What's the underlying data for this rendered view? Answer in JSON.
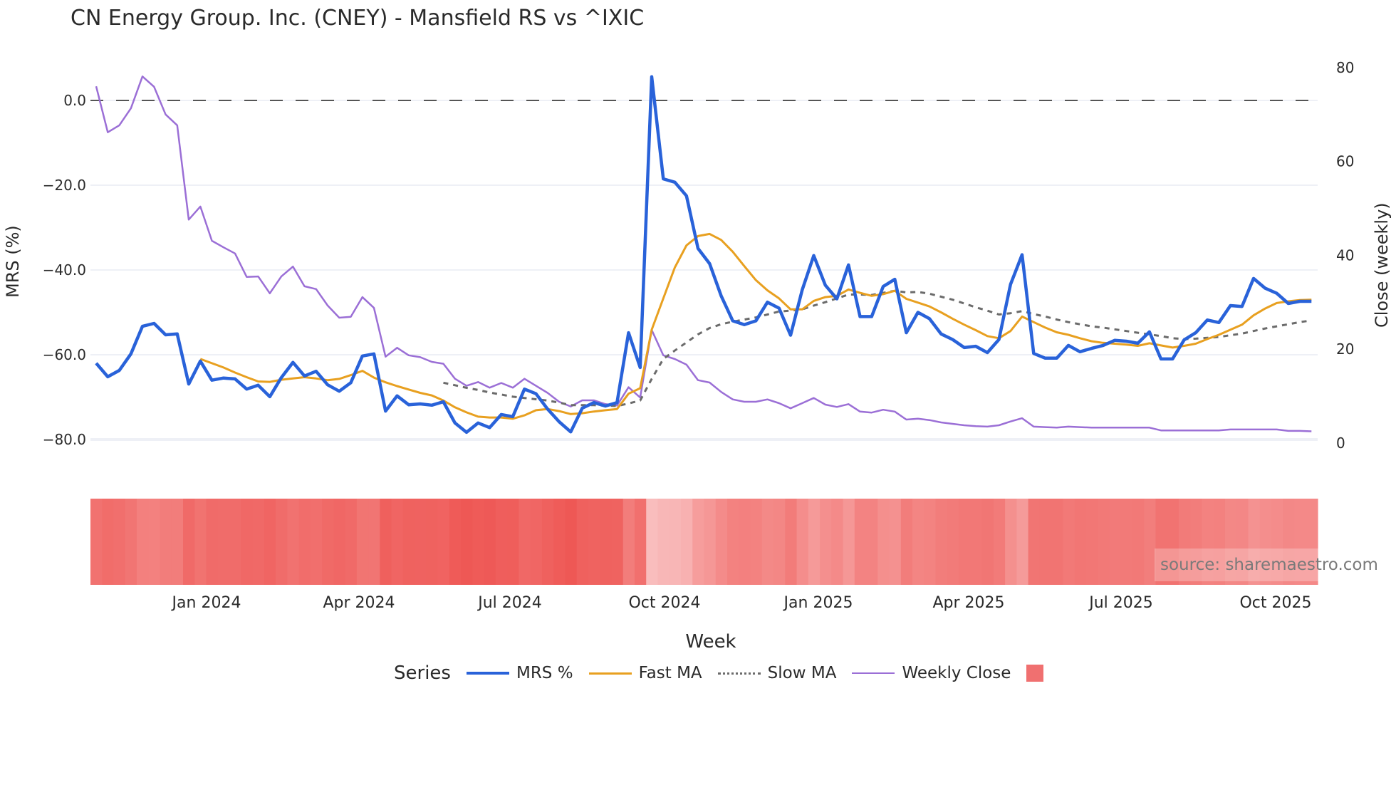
{
  "title": "CN Energy Group. Inc. (CNEY) - Mansfield RS vs ^IXIC",
  "source_label": "source: sharemaestro.com",
  "axes": {
    "y_left_title": "MRS (%)",
    "y_right_title": "Close (weekly)",
    "x_title": "Week",
    "y_left_ticks": [
      "0.0",
      "−20.0",
      "−40.0",
      "−60.0",
      "−80.0"
    ],
    "y_right_ticks": [
      "80",
      "60",
      "40",
      "20",
      "0"
    ],
    "x_ticks": [
      "Jan 2024",
      "Apr 2024",
      "Jul 2024",
      "Oct 2024",
      "Jan 2025",
      "Apr 2025",
      "Jul 2025",
      "Oct 2025"
    ]
  },
  "legend": {
    "title": "Series",
    "items": [
      {
        "label": "MRS %",
        "color": "#2962d9",
        "style": "solid"
      },
      {
        "label": "Fast MA",
        "color": "#e8a020",
        "style": "solid"
      },
      {
        "label": "Slow MA",
        "color": "#6b6b6b",
        "style": "dotted"
      },
      {
        "label": "Weekly Close",
        "color": "#9b6fd6",
        "style": "solid"
      },
      {
        "label": "",
        "color": "#f07070",
        "style": "box"
      }
    ]
  },
  "colors": {
    "mrs": "#2962d9",
    "fast_ma": "#e8a020",
    "slow_ma": "#6b6b6b",
    "close": "#9b6fd6",
    "zero_line": "#555555",
    "grid": "#eef0f6",
    "heat_low": "#ee5552",
    "heat_high": "#f9bdbd"
  },
  "chart_data": {
    "type": "line",
    "title": "CN Energy Group. Inc. (CNEY) - Mansfield RS vs ^IXIC",
    "xlabel": "Week",
    "ylabel": "MRS (%)",
    "y2label": "Close (weekly)",
    "ylim": [
      -81,
      6
    ],
    "y2lim": [
      0,
      80
    ],
    "x_range": [
      "Oct 2023",
      "Oct 2025"
    ],
    "x_tick_labels": [
      "Jan 2024",
      "Apr 2024",
      "Jul 2024",
      "Oct 2024",
      "Jan 2025",
      "Apr 2025",
      "Jul 2025",
      "Oct 2025"
    ],
    "grid": true,
    "legend_position": "bottom",
    "reference_line": {
      "y": 0,
      "style": "dashed"
    },
    "series": [
      {
        "name": "MRS %",
        "axis": "left",
        "start_index": 0,
        "values": [
          -62.0,
          -65.2,
          -63.7,
          -59.8,
          -53.3,
          -52.6,
          -55.3,
          -55.1,
          -66.9,
          -61.5,
          -66.0,
          -65.5,
          -65.7,
          -68.1,
          -67.2,
          -69.9,
          -65.4,
          -61.8,
          -65.0,
          -63.9,
          -67.1,
          -68.6,
          -66.6,
          -60.3,
          -59.8,
          -73.3,
          -69.7,
          -71.8,
          -71.6,
          -71.9,
          -71.1,
          -76.1,
          -78.3,
          -76.1,
          -77.2,
          -74.1,
          -74.6,
          -68.1,
          -69.2,
          -72.8,
          -75.8,
          -78.2,
          -72.6,
          -71.3,
          -72.1,
          -71.3,
          -54.8,
          -63.0,
          5.6,
          -18.5,
          -19.3,
          -22.5,
          -34.9,
          -38.5,
          -46.1,
          -52.0,
          -52.9,
          -52.0,
          -47.6,
          -49.0,
          -55.4,
          -44.7,
          -36.6,
          -43.6,
          -46.8,
          -38.8,
          -51.0,
          -51.0,
          -43.9,
          -42.2,
          -54.8,
          -50.0,
          -51.5,
          -55.1,
          -56.4,
          -58.3,
          -58.0,
          -59.5,
          -56.4,
          -43.4,
          -36.4,
          -59.7,
          -60.8,
          -60.8,
          -57.8,
          -59.3,
          -58.5,
          -57.8,
          -56.6,
          -56.8,
          -57.3,
          -54.6,
          -61.0,
          -61.0,
          -56.5,
          -54.8,
          -51.8,
          -52.4,
          -48.4,
          -48.6,
          -42.0,
          -44.3,
          -45.5,
          -47.9,
          -47.4,
          -47.4
        ]
      },
      {
        "name": "Fast MA",
        "axis": "left",
        "start_index": 9,
        "values": [
          -61.0,
          -62.0,
          -63.0,
          -64.2,
          -65.3,
          -66.3,
          -66.4,
          -65.9,
          -65.6,
          -65.3,
          -65.6,
          -66.0,
          -65.7,
          -64.8,
          -63.8,
          -65.4,
          -66.5,
          -67.4,
          -68.2,
          -69.0,
          -69.6,
          -70.8,
          -72.4,
          -73.6,
          -74.6,
          -74.8,
          -74.8,
          -75.1,
          -74.3,
          -73.1,
          -72.8,
          -73.3,
          -74.0,
          -73.8,
          -73.4,
          -73.1,
          -72.8,
          -69.2,
          -67.9,
          -54.1,
          -46.7,
          -39.4,
          -34.2,
          -32.0,
          -31.5,
          -32.9,
          -35.7,
          -39.1,
          -42.4,
          -44.8,
          -46.7,
          -49.3,
          -49.3,
          -47.3,
          -46.4,
          -46.1,
          -44.6,
          -45.4,
          -46.1,
          -45.7,
          -44.9,
          -46.8,
          -47.7,
          -48.6,
          -50.0,
          -51.5,
          -52.9,
          -54.2,
          -55.6,
          -56.1,
          -54.4,
          -51.0,
          -52.3,
          -53.6,
          -54.7,
          -55.3,
          -56.1,
          -56.8,
          -57.2,
          -57.4,
          -57.6,
          -57.9,
          -57.3,
          -57.8,
          -58.3,
          -57.9,
          -57.4,
          -56.3,
          -55.3,
          -54.1,
          -52.9,
          -50.7,
          -49.1,
          -47.8,
          -47.4,
          -47.1,
          -47.0
        ]
      },
      {
        "name": "Slow MA",
        "axis": "left",
        "start_index": 30,
        "values": [
          -66.6,
          -67.2,
          -67.8,
          -68.3,
          -68.9,
          -69.4,
          -69.9,
          -70.2,
          -70.5,
          -70.8,
          -71.3,
          -71.9,
          -71.9,
          -71.9,
          -72.0,
          -72.1,
          -71.5,
          -70.8,
          -65.7,
          -61.0,
          -59.0,
          -57.1,
          -55.2,
          -53.7,
          -52.8,
          -52.2,
          -51.7,
          -51.2,
          -50.5,
          -49.8,
          -49.6,
          -49.3,
          -48.4,
          -47.6,
          -46.7,
          -45.8,
          -45.8,
          -45.9,
          -45.4,
          -44.9,
          -45.3,
          -45.2,
          -45.6,
          -46.3,
          -47.0,
          -47.9,
          -48.8,
          -49.6,
          -50.5,
          -50.2,
          -49.7,
          -50.4,
          -51.0,
          -51.7,
          -52.3,
          -52.8,
          -53.3,
          -53.6,
          -54.0,
          -54.4,
          -54.8,
          -55.2,
          -55.6,
          -56.1,
          -56.3,
          -56.2,
          -56.0,
          -55.8,
          -55.4,
          -55.0,
          -54.4,
          -53.8,
          -53.3,
          -52.8,
          -52.3,
          -51.9
        ]
      },
      {
        "name": "Weekly Close",
        "axis": "right",
        "start_index": 0,
        "values": [
          76.0,
          66.2,
          67.7,
          71.3,
          78.1,
          75.9,
          70.0,
          67.7,
          47.6,
          50.4,
          43.1,
          41.7,
          40.4,
          35.4,
          35.5,
          31.9,
          35.5,
          37.6,
          33.4,
          32.8,
          29.3,
          26.7,
          26.9,
          31.1,
          28.8,
          18.4,
          20.3,
          18.7,
          18.3,
          17.3,
          16.9,
          13.7,
          12.2,
          13.0,
          11.8,
          12.8,
          11.8,
          13.7,
          12.2,
          10.7,
          8.8,
          7.8,
          9.1,
          9.1,
          8.3,
          8.0,
          11.9,
          9.7,
          24.1,
          18.7,
          17.9,
          16.7,
          13.4,
          12.9,
          10.9,
          9.3,
          8.8,
          8.8,
          9.3,
          8.5,
          7.4,
          8.5,
          9.6,
          8.2,
          7.7,
          8.3,
          6.7,
          6.5,
          7.1,
          6.7,
          5.0,
          5.2,
          4.9,
          4.4,
          4.1,
          3.8,
          3.6,
          3.5,
          3.8,
          4.6,
          5.3,
          3.5,
          3.4,
          3.3,
          3.5,
          3.4,
          3.3,
          3.3,
          3.3,
          3.3,
          3.3,
          3.3,
          2.7,
          2.7,
          2.7,
          2.7,
          2.7,
          2.7,
          2.9,
          2.9,
          2.9,
          2.9,
          2.9,
          2.6,
          2.6,
          2.5
        ]
      }
    ],
    "heatmap": {
      "description": "weekly MRS-intensity strip below main plot; darker red = lower MRS",
      "source_series": "MRS %"
    }
  }
}
